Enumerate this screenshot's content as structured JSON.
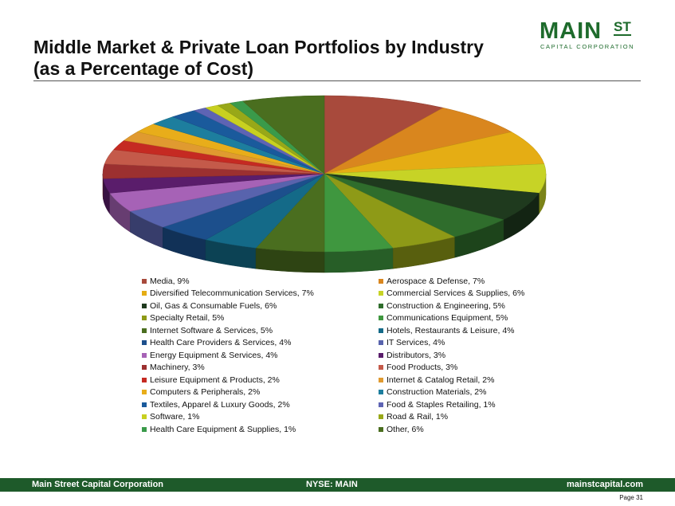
{
  "header": {
    "title_line1": "Middle Market & Private Loan Portfolios by Industry",
    "title_line2": "(as a Percentage of Cost)"
  },
  "logo": {
    "main": "MAIN",
    "st": "ST",
    "subtitle": "CAPITAL CORPORATION"
  },
  "chart_data": {
    "type": "pie",
    "title": "",
    "legend_position": "bottom",
    "slices": [
      {
        "label": "Media, 9%",
        "value": 9,
        "color": "#a84a3c"
      },
      {
        "label": "Aerospace & Defense, 7%",
        "value": 7,
        "color": "#d9861e"
      },
      {
        "label": "Diversified Telecommunication Services, 7%",
        "value": 7,
        "color": "#e5ad14"
      },
      {
        "label": "Commercial Services & Supplies, 6%",
        "value": 6,
        "color": "#c7d326"
      },
      {
        "label": "Oil, Gas & Consumable Fuels, 6%",
        "value": 6,
        "color": "#1f3a1e"
      },
      {
        "label": "Construction & Engineering, 5%",
        "value": 5,
        "color": "#2f6d2c"
      },
      {
        "label": "Specialty Retail, 5%",
        "value": 5,
        "color": "#8e9a17"
      },
      {
        "label": "Communications Equipment, 5%",
        "value": 5,
        "color": "#3f973f"
      },
      {
        "label": "Internet Software & Services, 5%",
        "value": 5,
        "color": "#4a6e1f"
      },
      {
        "label": "Hotels, Restaurants & Leisure, 4%",
        "value": 4,
        "color": "#146a88"
      },
      {
        "label": "Health Care Providers & Services, 4%",
        "value": 4,
        "color": "#1c4f8c"
      },
      {
        "label": "IT Services, 4%",
        "value": 4,
        "color": "#5863ad"
      },
      {
        "label": "Energy Equipment & Services, 4%",
        "value": 4,
        "color": "#a662b6"
      },
      {
        "label": "Distributors, 3%",
        "value": 3,
        "color": "#5a1d6b"
      },
      {
        "label": "Machinery, 3%",
        "value": 3,
        "color": "#9c3030"
      },
      {
        "label": "Food Products, 3%",
        "value": 3,
        "color": "#c45a4a"
      },
      {
        "label": "Leisure Equipment & Products, 2%",
        "value": 2,
        "color": "#c52a22"
      },
      {
        "label": "Internet & Catalog Retail, 2%",
        "value": 2,
        "color": "#e09a30"
      },
      {
        "label": "Computers & Peripherals, 2%",
        "value": 2,
        "color": "#e8ad1a"
      },
      {
        "label": "Construction Materials, 2%",
        "value": 2,
        "color": "#1d7e9e"
      },
      {
        "label": "Textiles, Apparel & Luxury Goods, 2%",
        "value": 2,
        "color": "#1a5a9c"
      },
      {
        "label": "Food & Staples Retailing, 1%",
        "value": 1,
        "color": "#5e64b4"
      },
      {
        "label": "Software, 1%",
        "value": 1,
        "color": "#c8d020"
      },
      {
        "label": "Road & Rail, 1%",
        "value": 1,
        "color": "#98a818"
      },
      {
        "label": "Health Care Equipment & Supplies, 1%",
        "value": 1,
        "color": "#3a9a4a"
      },
      {
        "label": "Other, 6%",
        "value": 6,
        "color": "#4a6e1f"
      }
    ]
  },
  "footer": {
    "left": "Main Street Capital Corporation",
    "middle": "NYSE: MAIN",
    "right": "mainstcapital.com",
    "page": "Page  31"
  }
}
